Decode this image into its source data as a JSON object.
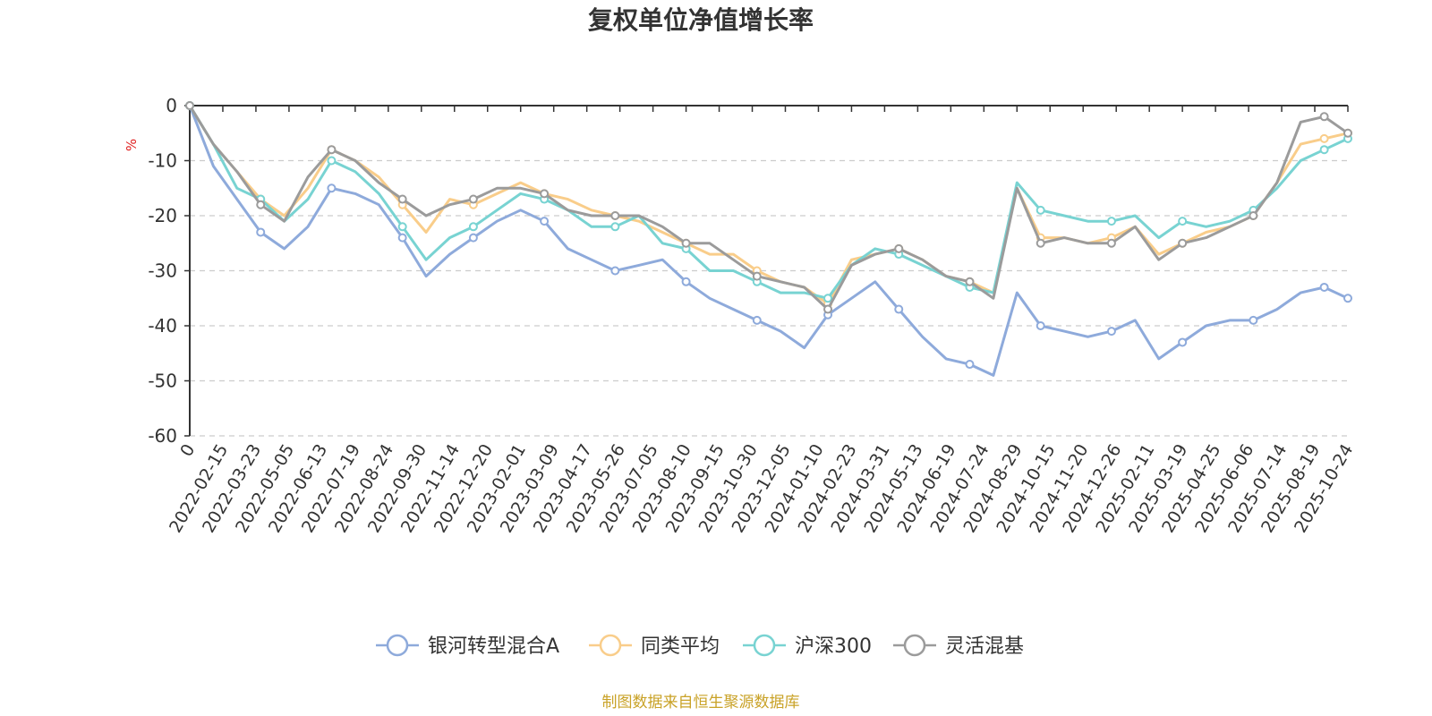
{
  "chart_data": {
    "type": "line",
    "title": "复权单位净值增长率",
    "ylabel": "%",
    "ylim": [
      -60,
      0
    ],
    "yticks": [
      "0",
      "-10",
      "-20",
      "-30",
      "-40",
      "-50",
      "-60"
    ],
    "grid": true,
    "legend_position": "bottom",
    "source": "制图数据来自恒生聚源数据库",
    "xtick_labels": [
      "0",
      "2022-02-15",
      "2022-03-23",
      "2022-05-05",
      "2022-06-13",
      "2022-07-19",
      "2022-08-24",
      "2022-09-30",
      "2022-11-14",
      "2022-12-20",
      "2023-02-01",
      "2023-03-09",
      "2023-04-17",
      "2023-05-26",
      "2023-07-05",
      "2023-08-10",
      "2023-09-15",
      "2023-10-30",
      "2023-12-05",
      "2024-01-10",
      "2024-02-23",
      "2024-03-31",
      "2024-05-13",
      "2024-06-19",
      "2024-07-24",
      "2024-08-29",
      "2024-10-15",
      "2024-11-20",
      "2024-12-26",
      "2025-02-11",
      "2025-03-19",
      "2025-04-25",
      "2025-06-06",
      "2025-07-14",
      "2025-08-19",
      "2025-10-24"
    ],
    "series": [
      {
        "name": "银河转型混合A",
        "color": "#8eaadb",
        "values": [
          0,
          -11,
          -17,
          -23,
          -26,
          -22,
          -15,
          -16,
          -18,
          -24,
          -31,
          -27,
          -24,
          -21,
          -19,
          -21,
          -26,
          -28,
          -30,
          -29,
          -28,
          -32,
          -35,
          -37,
          -39,
          -41,
          -44,
          -38,
          -35,
          -32,
          -37,
          -42,
          -46,
          -47,
          -49,
          -34,
          -40,
          -41,
          -42,
          -41,
          -39,
          -46,
          -43,
          -40,
          -39,
          -39,
          -37,
          -34,
          -33,
          -35
        ]
      },
      {
        "name": "同类平均",
        "color": "#f9cd8a",
        "values": [
          0,
          -7,
          -12,
          -17,
          -20,
          -15,
          -8,
          -10,
          -13,
          -18,
          -23,
          -17,
          -18,
          -16,
          -14,
          -16,
          -17,
          -19,
          -20,
          -21,
          -23,
          -25,
          -27,
          -27,
          -30,
          -32,
          -33,
          -36,
          -28,
          -27,
          -26,
          -28,
          -31,
          -32,
          -34,
          -15,
          -24,
          -24,
          -25,
          -24,
          -22,
          -27,
          -25,
          -23,
          -22,
          -20,
          -14,
          -7,
          -6,
          -5
        ]
      },
      {
        "name": "沪深300",
        "color": "#78d3d2",
        "values": [
          0,
          -7,
          -15,
          -17,
          -21,
          -17,
          -10,
          -12,
          -16,
          -22,
          -28,
          -24,
          -22,
          -19,
          -16,
          -17,
          -19,
          -22,
          -22,
          -20,
          -25,
          -26,
          -30,
          -30,
          -32,
          -34,
          -34,
          -35,
          -29,
          -26,
          -27,
          -29,
          -31,
          -33,
          -34,
          -14,
          -19,
          -20,
          -21,
          -21,
          -20,
          -24,
          -21,
          -22,
          -21,
          -19,
          -15,
          -10,
          -8,
          -6
        ]
      },
      {
        "name": "灵活混基",
        "color": "#9b9b9b",
        "values": [
          0,
          -7,
          -12,
          -18,
          -21,
          -13,
          -8,
          -10,
          -14,
          -17,
          -20,
          -18,
          -17,
          -15,
          -15,
          -16,
          -19,
          -20,
          -20,
          -20,
          -22,
          -25,
          -25,
          -28,
          -31,
          -32,
          -33,
          -37,
          -29,
          -27,
          -26,
          -28,
          -31,
          -32,
          -35,
          -15,
          -25,
          -24,
          -25,
          -25,
          -22,
          -28,
          -25,
          -24,
          -22,
          -20,
          -14,
          -3,
          -2,
          -5
        ]
      }
    ]
  }
}
